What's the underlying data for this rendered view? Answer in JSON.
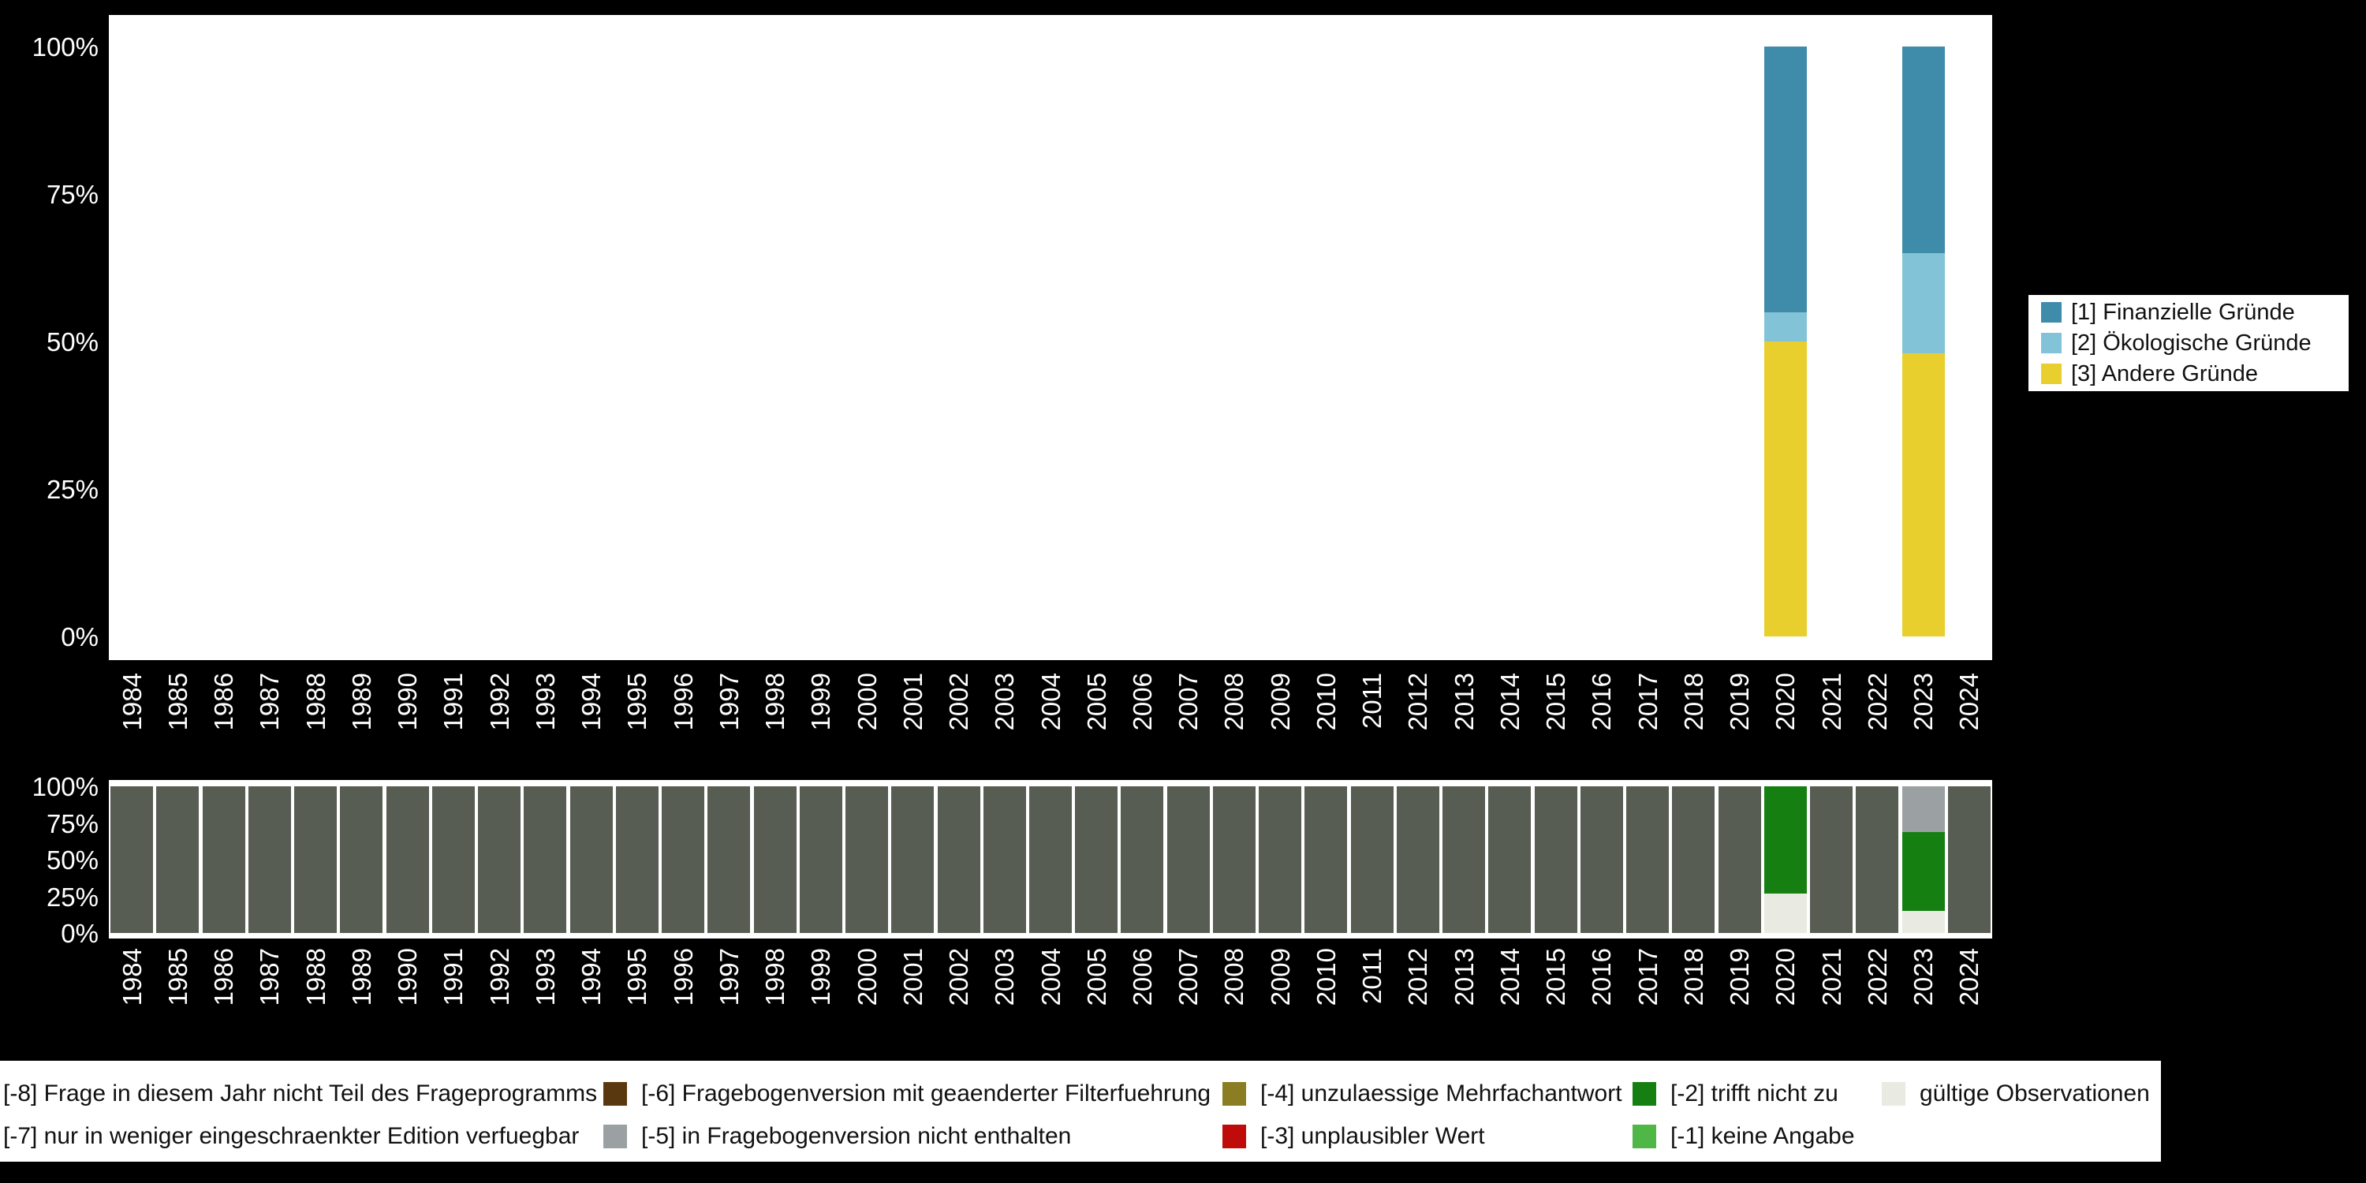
{
  "background": "#000000",
  "axis_text_color": "#ffffff",
  "chart_data": [
    {
      "type": "bar",
      "stacked": true,
      "title": "",
      "xlabel": "",
      "ylabel": "",
      "ylim": [
        0,
        100
      ],
      "grid": false,
      "x_categories": [
        "1984",
        "1985",
        "1986",
        "1987",
        "1988",
        "1989",
        "1990",
        "1991",
        "1992",
        "1993",
        "1994",
        "1995",
        "1996",
        "1997",
        "1998",
        "1999",
        "2000",
        "2001",
        "2002",
        "2003",
        "2004",
        "2005",
        "2006",
        "2007",
        "2008",
        "2009",
        "2010",
        "2011",
        "2012",
        "2013",
        "2014",
        "2015",
        "2016",
        "2017",
        "2018",
        "2019",
        "2020",
        "2021",
        "2022",
        "2023",
        "2024"
      ],
      "y_ticks": [
        {
          "value": 0,
          "label": "0%"
        },
        {
          "value": 25,
          "label": "25%"
        },
        {
          "value": 50,
          "label": "50%"
        },
        {
          "value": 75,
          "label": "75%"
        },
        {
          "value": 100,
          "label": "100%"
        }
      ],
      "stack_order": [
        "[3] Andere Gründe",
        "[2] Ökologische Gründe",
        "[1] Finanzielle Gründe"
      ],
      "series": [
        {
          "name": "[1] Finanzielle Gründe",
          "color": "#3e8caa",
          "values": {
            "2020": 45,
            "2023": 35
          }
        },
        {
          "name": "[2] Ökologische Gründe",
          "color": "#82c3d8",
          "values": {
            "2020": 5,
            "2023": 17
          }
        },
        {
          "name": "[3] Andere Gründe",
          "color": "#e9cf2d",
          "values": {
            "2020": 50,
            "2023": 48
          }
        }
      ],
      "legend": {
        "position": "right",
        "items": [
          {
            "label": "[1] Finanzielle Gründe",
            "color": "#3e8caa"
          },
          {
            "label": "[2] Ökologische Gründe",
            "color": "#82c3d8"
          },
          {
            "label": "[3] Andere Gründe",
            "color": "#e9cf2d"
          }
        ]
      }
    },
    {
      "type": "bar",
      "stacked": true,
      "title": "",
      "xlabel": "",
      "ylabel": "",
      "ylim": [
        0,
        100
      ],
      "grid": false,
      "x_categories": [
        "1984",
        "1985",
        "1986",
        "1987",
        "1988",
        "1989",
        "1990",
        "1991",
        "1992",
        "1993",
        "1994",
        "1995",
        "1996",
        "1997",
        "1998",
        "1999",
        "2000",
        "2001",
        "2002",
        "2003",
        "2004",
        "2005",
        "2006",
        "2007",
        "2008",
        "2009",
        "2010",
        "2011",
        "2012",
        "2013",
        "2014",
        "2015",
        "2016",
        "2017",
        "2018",
        "2019",
        "2020",
        "2021",
        "2022",
        "2023",
        "2024"
      ],
      "y_ticks": [
        {
          "value": 0,
          "label": "0%"
        },
        {
          "value": 25,
          "label": "25%"
        },
        {
          "value": 50,
          "label": "50%"
        },
        {
          "value": 75,
          "label": "75%"
        },
        {
          "value": 100,
          "label": "100%"
        }
      ],
      "stack_order": [
        "gültige Observationen",
        "[-2] trifft nicht zu",
        "[-5] in Fragebogenversion nicht enthalten",
        "[-8] Frage in diesem Jahr nicht Teil des Frageprogramms"
      ],
      "series": [
        {
          "name": "[-8] Frage in diesem Jahr nicht Teil des Frageprogramms",
          "color": "#575d53",
          "values": {
            "1984": 100,
            "1985": 100,
            "1986": 100,
            "1987": 100,
            "1988": 100,
            "1989": 100,
            "1990": 100,
            "1991": 100,
            "1992": 100,
            "1993": 100,
            "1994": 100,
            "1995": 100,
            "1996": 100,
            "1997": 100,
            "1998": 100,
            "1999": 100,
            "2000": 100,
            "2001": 100,
            "2002": 100,
            "2003": 100,
            "2004": 100,
            "2005": 100,
            "2006": 100,
            "2007": 100,
            "2008": 100,
            "2009": 100,
            "2010": 100,
            "2011": 100,
            "2012": 100,
            "2013": 100,
            "2014": 100,
            "2015": 100,
            "2016": 100,
            "2017": 100,
            "2018": 100,
            "2019": 100,
            "2021": 100,
            "2022": 100,
            "2024": 100
          }
        },
        {
          "name": "[-5] in Fragebogenversion nicht enthalten",
          "color": "#9ba1a2",
          "values": {
            "2023": 31
          }
        },
        {
          "name": "[-2] trifft nicht zu",
          "color": "#158011",
          "values": {
            "2020": 73,
            "2023": 54
          }
        },
        {
          "name": "gültige Observationen",
          "color": "#e9eae1",
          "values": {
            "2020": 27,
            "2023": 15
          }
        }
      ],
      "legend": {
        "position": "bottom",
        "rows": [
          [
            {
              "label": "[-8] Frage in diesem Jahr nicht Teil des Frageprogramms",
              "color": "#575d53",
              "swatch_visible": false
            },
            {
              "label": "[-6] Fragebogenversion mit geaenderter Filterfuehrung",
              "color": "#5a380f",
              "swatch_visible": true
            },
            {
              "label": "[-4] unzulaessige Mehrfachantwort",
              "color": "#8b7d22",
              "swatch_visible": true
            },
            {
              "label": "[-2] trifft nicht zu",
              "color": "#158011",
              "swatch_visible": true
            },
            {
              "label": "gültige Observationen",
              "color": "#e9eae1",
              "swatch_visible": true
            }
          ],
          [
            {
              "label": "[-7] nur in weniger eingeschraenkter Edition verfuegbar",
              "swatch_visible": false
            },
            {
              "label": "[-5] in Fragebogenversion nicht enthalten",
              "color": "#9ba1a2",
              "swatch_visible": true
            },
            {
              "label": "[-3] unplausibler Wert",
              "color": "#c00b0b",
              "swatch_visible": true
            },
            {
              "label": "[-1] keine Angabe",
              "color": "#4eb746",
              "swatch_visible": true
            }
          ]
        ]
      }
    }
  ]
}
